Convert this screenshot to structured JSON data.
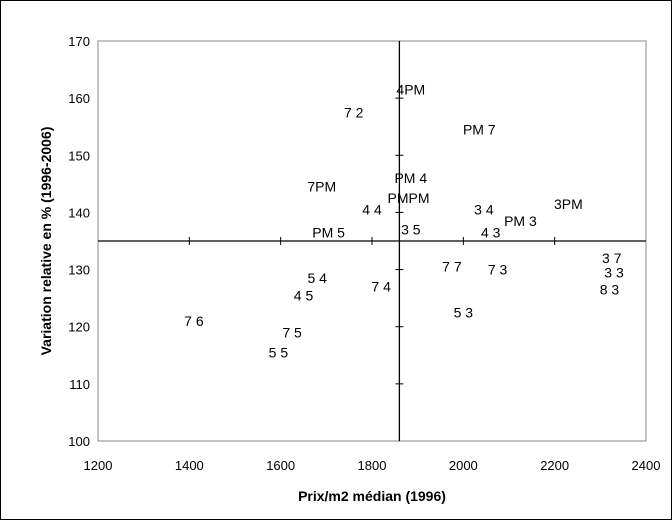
{
  "chart_data": {
    "type": "scatter",
    "title": "",
    "xlabel": "Prix/m2 médian (1996)",
    "ylabel": "Variation relative en % (1996-2006)",
    "xlim": [
      1200,
      2400
    ],
    "ylim": [
      100,
      170
    ],
    "x_ticks": [
      "1200",
      "1400",
      "1600",
      "1800",
      "2000",
      "2200",
      "2400"
    ],
    "y_ticks": [
      "100",
      "110",
      "120",
      "130",
      "140",
      "150",
      "160",
      "170"
    ],
    "cross_axis": {
      "x": 1860,
      "y": 135
    },
    "grid": false,
    "legend": "none",
    "points": [
      {
        "label": "4PM",
        "x": 1885,
        "y": 161.5
      },
      {
        "label": "7 2",
        "x": 1760,
        "y": 157.5
      },
      {
        "label": "PM 7",
        "x": 2035,
        "y": 154.5
      },
      {
        "label": "7PM",
        "x": 1690,
        "y": 144.5
      },
      {
        "label": "PM 4",
        "x": 1885,
        "y": 146
      },
      {
        "label": "PMPM",
        "x": 1880,
        "y": 142.5
      },
      {
        "label": "4 4",
        "x": 1800,
        "y": 140.5
      },
      {
        "label": "3 4",
        "x": 2045,
        "y": 140.5
      },
      {
        "label": "PM 3",
        "x": 2125,
        "y": 138.5
      },
      {
        "label": "3PM",
        "x": 2230,
        "y": 141.5
      },
      {
        "label": "3 5",
        "x": 1885,
        "y": 137
      },
      {
        "label": "4 3",
        "x": 2060,
        "y": 136.5
      },
      {
        "label": "PM 5",
        "x": 1705,
        "y": 136.5
      },
      {
        "label": "3 7",
        "x": 2325,
        "y": 132
      },
      {
        "label": "3 3",
        "x": 2330,
        "y": 129.5
      },
      {
        "label": "8 3",
        "x": 2320,
        "y": 126.5
      },
      {
        "label": "7 7",
        "x": 1975,
        "y": 130.5
      },
      {
        "label": "7 3",
        "x": 2075,
        "y": 130
      },
      {
        "label": "5 4",
        "x": 1680,
        "y": 128.5
      },
      {
        "label": "7 4",
        "x": 1820,
        "y": 127
      },
      {
        "label": "4 5",
        "x": 1650,
        "y": 125.5
      },
      {
        "label": "5 3",
        "x": 2000,
        "y": 122.5
      },
      {
        "label": "7 6",
        "x": 1410,
        "y": 121
      },
      {
        "label": "7 5",
        "x": 1625,
        "y": 119
      },
      {
        "label": "5 5",
        "x": 1595,
        "y": 115.5
      }
    ]
  }
}
